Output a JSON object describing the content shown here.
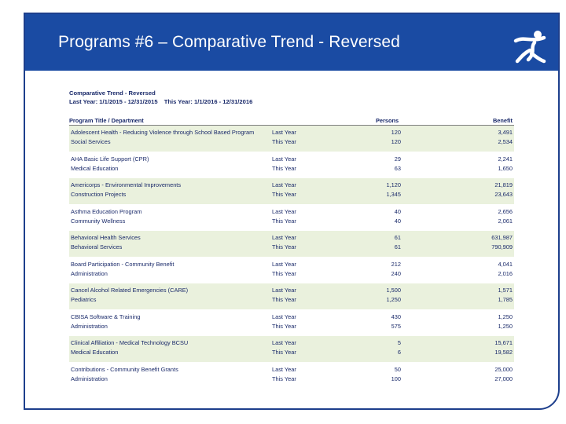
{
  "slide": {
    "title": "Programs #6 – Comparative Trend - Reversed"
  },
  "report": {
    "title": "Comparative Trend - Reversed",
    "last_year": "Last Year: 1/1/2015 - 12/31/2015",
    "this_year": "This Year: 1/1/2016 - 12/31/2016",
    "columns": {
      "program": "Program Title / Department",
      "persons": "Persons",
      "benefit": "Benefit"
    },
    "groups": [
      {
        "program": "Adolescent Health - Reducing Violence through School Based Program",
        "department": "Social Services",
        "ly_label": "Last Year",
        "ty_label": "This Year",
        "ly_persons": "120",
        "ty_persons": "120",
        "ly_benefit": "3,491",
        "ty_benefit": "2,534"
      },
      {
        "program": "AHA Basic Life Support (CPR)",
        "department": "Medical Education",
        "ly_label": "Last Year",
        "ty_label": "This Year",
        "ly_persons": "29",
        "ty_persons": "63",
        "ly_benefit": "2,241",
        "ty_benefit": "1,650"
      },
      {
        "program": "Americorps - Environmental Improvements",
        "department": "Construction Projects",
        "ly_label": "Last Year",
        "ty_label": "This Year",
        "ly_persons": "1,120",
        "ty_persons": "1,345",
        "ly_benefit": "21,819",
        "ty_benefit": "23,643"
      },
      {
        "program": "Asthma Education Program",
        "department": "Community Wellness",
        "ly_label": "Last Year",
        "ty_label": "This Year",
        "ly_persons": "40",
        "ty_persons": "40",
        "ly_benefit": "2,656",
        "ty_benefit": "2,061"
      },
      {
        "program": "Behavioral Health Services",
        "department": "Behavioral Services",
        "ly_label": "Last Year",
        "ty_label": "This Year",
        "ly_persons": "61",
        "ty_persons": "61",
        "ly_benefit": "631,987",
        "ty_benefit": "790,909"
      },
      {
        "program": "Board Participation - Community Benefit",
        "department": "Administration",
        "ly_label": "Last Year",
        "ty_label": "This Year",
        "ly_persons": "212",
        "ty_persons": "240",
        "ly_benefit": "4,041",
        "ty_benefit": "2,016"
      },
      {
        "program": "Cancel Alcohol Related Emergencies (CARE)",
        "department": "Pediatrics",
        "ly_label": "Last Year",
        "ty_label": "This Year",
        "ly_persons": "1,500",
        "ty_persons": "1,250",
        "ly_benefit": "1,571",
        "ty_benefit": "1,785"
      },
      {
        "program": "CBISA Software & Training",
        "department": "Administration",
        "ly_label": "Last Year",
        "ty_label": "This Year",
        "ly_persons": "430",
        "ty_persons": "575",
        "ly_benefit": "1,250",
        "ty_benefit": "1,250"
      },
      {
        "program": "Clinical Affiliation - Medical Technology BCSU",
        "department": "Medical Education",
        "ly_label": "Last Year",
        "ty_label": "This Year",
        "ly_persons": "5",
        "ty_persons": "6",
        "ly_benefit": "15,671",
        "ty_benefit": "19,582"
      },
      {
        "program": "Contributions - Community Benefit Grants",
        "department": "Administration",
        "ly_label": "Last Year",
        "ty_label": "This Year",
        "ly_persons": "50",
        "ty_persons": "100",
        "ly_benefit": "25,000",
        "ty_benefit": "27,000"
      }
    ]
  },
  "colors": {
    "header_blue": "#1a4ba3",
    "row_shade": "#eaf1dd",
    "logo_green": "#4a9a2a"
  },
  "icons": {
    "logo": "stick-figure-logo-icon"
  }
}
